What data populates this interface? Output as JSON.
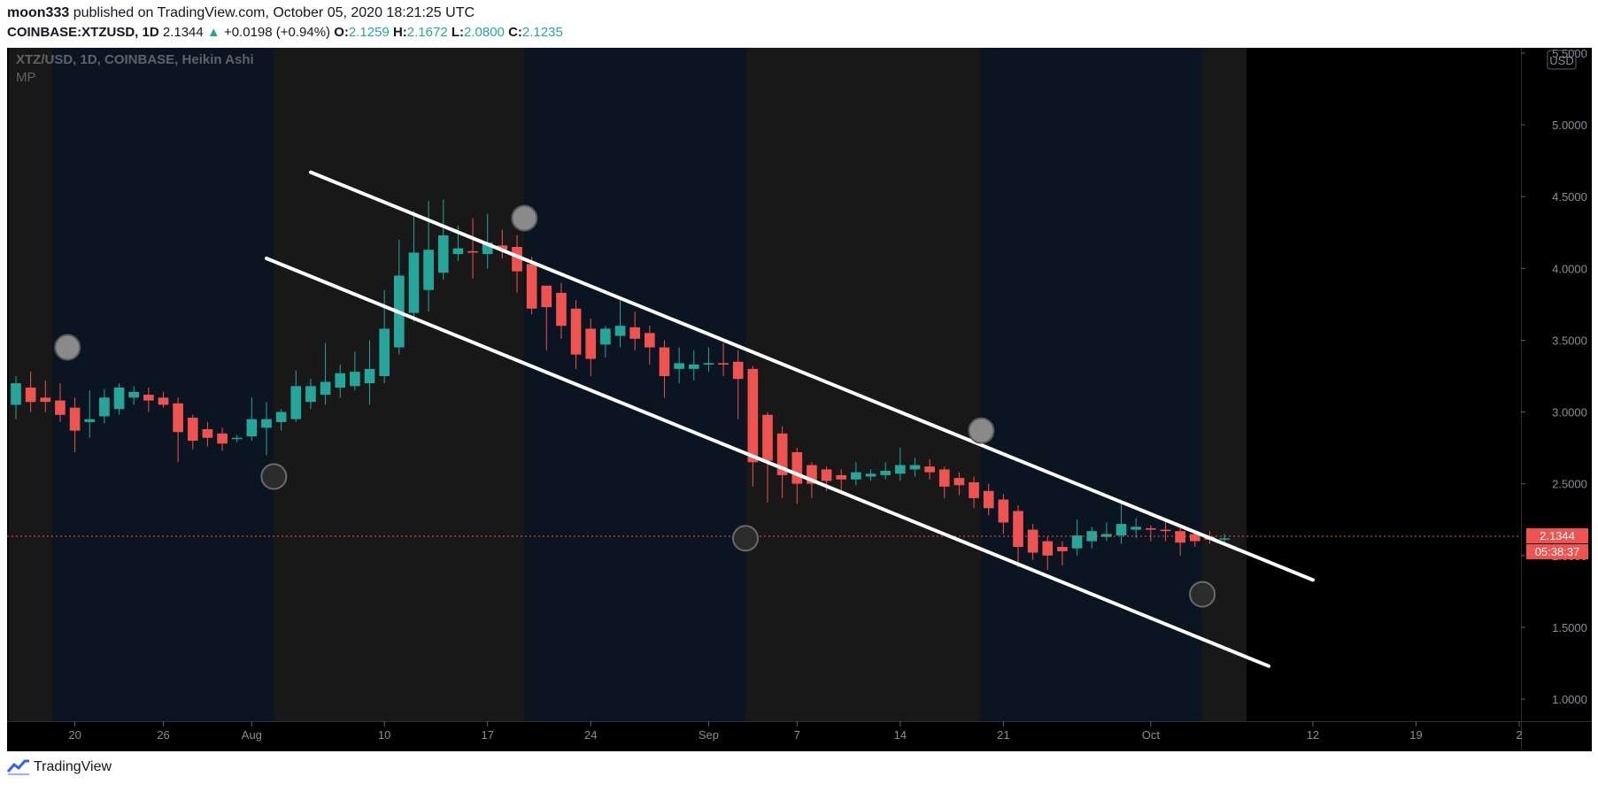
{
  "header": {
    "author": "moon333",
    "published_text": "published on TradingView.com, October 05, 2020 18:21:25 UTC",
    "symbol": "COINBASE:XTZUSD, 1D",
    "last": "2.1344",
    "change_arrow": "▲",
    "change": "+0.0198 (+0.94%)",
    "o_label": "O:",
    "o_value": "2.1259",
    "h_label": "H:",
    "h_value": "2.1672",
    "l_label": "L:",
    "l_value": "2.0800",
    "c_label": "C:",
    "c_value": "2.1235"
  },
  "chart_overlay": {
    "title": "XTZ/USD, 1D, COINBASE, Heikin Ashi",
    "indicator": "MP",
    "currency_badge": "USD",
    "price_label": "2.1344",
    "countdown_label": "05:38:37"
  },
  "footer": {
    "brand": "TradingView",
    "logo_icon": "tradingview-logo-icon"
  },
  "colors": {
    "up": "#26a69a",
    "down": "#ef5350",
    "bg": "#000000",
    "band_gray": "#181818",
    "band_blue": "#0b1521",
    "channel": "#ffffff",
    "marker": "#8a8a8a"
  },
  "chart_data": {
    "type": "candlestick",
    "style": "Heikin Ashi",
    "y_axis": {
      "min": 1.0,
      "max": 5.5,
      "ticks": [
        1.0,
        1.5,
        2.0,
        2.5,
        3.0,
        3.5,
        4.0,
        4.5,
        5.0,
        5.5
      ],
      "tick_labels": [
        "1.0000",
        "1.5000",
        "2.0000",
        "2.5000",
        "3.0000",
        "3.5000",
        "4.0000",
        "4.5000",
        "5.0000",
        "5.5000"
      ]
    },
    "x_axis": {
      "start": "2020-07-16",
      "end": "2020-10-26",
      "ticks": [
        {
          "date": "2020-07-20",
          "label": "20"
        },
        {
          "date": "2020-07-26",
          "label": "26"
        },
        {
          "date": "2020-08-01",
          "label": "Aug"
        },
        {
          "date": "2020-08-10",
          "label": "10"
        },
        {
          "date": "2020-08-17",
          "label": "17"
        },
        {
          "date": "2020-08-24",
          "label": "24"
        },
        {
          "date": "2020-09-01",
          "label": "Sep"
        },
        {
          "date": "2020-09-07",
          "label": "7"
        },
        {
          "date": "2020-09-14",
          "label": "14"
        },
        {
          "date": "2020-09-21",
          "label": "21"
        },
        {
          "date": "2020-10-01",
          "label": "Oct"
        },
        {
          "date": "2020-10-12",
          "label": "12"
        },
        {
          "date": "2020-10-19",
          "label": "19"
        },
        {
          "date": "2020-10-26",
          "label": "2"
        }
      ]
    },
    "bands": [
      {
        "from": "2020-07-16",
        "to": "2020-07-19",
        "kind": "gray"
      },
      {
        "from": "2020-07-19",
        "to": "2020-08-03",
        "kind": "blue"
      },
      {
        "from": "2020-08-03",
        "to": "2020-08-20",
        "kind": "gray"
      },
      {
        "from": "2020-08-20",
        "to": "2020-09-04",
        "kind": "blue"
      },
      {
        "from": "2020-09-04",
        "to": "2020-09-20",
        "kind": "gray"
      },
      {
        "from": "2020-09-20",
        "to": "2020-10-05",
        "kind": "blue"
      },
      {
        "from": "2020-10-05",
        "to": "2020-10-08",
        "kind": "gray"
      }
    ],
    "candles": [
      {
        "date": "2020-07-16",
        "o": 3.05,
        "h": 3.25,
        "l": 2.95,
        "c": 3.2
      },
      {
        "date": "2020-07-17",
        "o": 3.17,
        "h": 3.28,
        "l": 3.0,
        "c": 3.07
      },
      {
        "date": "2020-07-18",
        "o": 3.1,
        "h": 3.22,
        "l": 3.0,
        "c": 3.07
      },
      {
        "date": "2020-07-19",
        "o": 3.08,
        "h": 3.2,
        "l": 2.93,
        "c": 2.98
      },
      {
        "date": "2020-07-20",
        "o": 3.03,
        "h": 3.1,
        "l": 2.72,
        "c": 2.87
      },
      {
        "date": "2020-07-21",
        "o": 2.93,
        "h": 3.15,
        "l": 2.82,
        "c": 2.95
      },
      {
        "date": "2020-07-22",
        "o": 2.97,
        "h": 3.16,
        "l": 2.92,
        "c": 3.1
      },
      {
        "date": "2020-07-23",
        "o": 3.02,
        "h": 3.2,
        "l": 2.98,
        "c": 3.17
      },
      {
        "date": "2020-07-24",
        "o": 3.1,
        "h": 3.18,
        "l": 3.05,
        "c": 3.14
      },
      {
        "date": "2020-07-25",
        "o": 3.12,
        "h": 3.17,
        "l": 3.0,
        "c": 3.08
      },
      {
        "date": "2020-07-26",
        "o": 3.1,
        "h": 3.14,
        "l": 3.03,
        "c": 3.05
      },
      {
        "date": "2020-07-27",
        "o": 3.06,
        "h": 3.1,
        "l": 2.65,
        "c": 2.86
      },
      {
        "date": "2020-07-28",
        "o": 2.96,
        "h": 2.98,
        "l": 2.74,
        "c": 2.8
      },
      {
        "date": "2020-07-29",
        "o": 2.88,
        "h": 2.93,
        "l": 2.76,
        "c": 2.82
      },
      {
        "date": "2020-07-30",
        "o": 2.85,
        "h": 2.89,
        "l": 2.73,
        "c": 2.78
      },
      {
        "date": "2020-07-31",
        "o": 2.82,
        "h": 2.84,
        "l": 2.79,
        "c": 2.82
      },
      {
        "date": "2020-08-01",
        "o": 2.83,
        "h": 3.1,
        "l": 2.8,
        "c": 2.95
      },
      {
        "date": "2020-08-02",
        "o": 2.89,
        "h": 3.07,
        "l": 2.7,
        "c": 2.95
      },
      {
        "date": "2020-08-03",
        "o": 2.93,
        "h": 3.02,
        "l": 2.87,
        "c": 3.0
      },
      {
        "date": "2020-08-04",
        "o": 2.95,
        "h": 3.29,
        "l": 2.93,
        "c": 3.18
      },
      {
        "date": "2020-08-05",
        "o": 3.07,
        "h": 3.23,
        "l": 3.02,
        "c": 3.18
      },
      {
        "date": "2020-08-06",
        "o": 3.12,
        "h": 3.48,
        "l": 3.05,
        "c": 3.21
      },
      {
        "date": "2020-08-07",
        "o": 3.17,
        "h": 3.33,
        "l": 3.1,
        "c": 3.27
      },
      {
        "date": "2020-08-08",
        "o": 3.18,
        "h": 3.42,
        "l": 3.15,
        "c": 3.28
      },
      {
        "date": "2020-08-09",
        "o": 3.2,
        "h": 3.5,
        "l": 3.05,
        "c": 3.3
      },
      {
        "date": "2020-08-10",
        "o": 3.25,
        "h": 3.85,
        "l": 3.2,
        "c": 3.58
      },
      {
        "date": "2020-08-11",
        "o": 3.45,
        "h": 4.2,
        "l": 3.4,
        "c": 3.95
      },
      {
        "date": "2020-08-12",
        "o": 3.69,
        "h": 4.4,
        "l": 3.63,
        "c": 4.11
      },
      {
        "date": "2020-08-13",
        "o": 3.85,
        "h": 4.47,
        "l": 3.7,
        "c": 4.13
      },
      {
        "date": "2020-08-14",
        "o": 3.97,
        "h": 4.48,
        "l": 3.92,
        "c": 4.23
      },
      {
        "date": "2020-08-15",
        "o": 4.1,
        "h": 4.3,
        "l": 4.05,
        "c": 4.14
      },
      {
        "date": "2020-08-16",
        "o": 4.12,
        "h": 4.35,
        "l": 3.93,
        "c": 4.11
      },
      {
        "date": "2020-08-17",
        "o": 4.1,
        "h": 4.38,
        "l": 4.0,
        "c": 4.18
      },
      {
        "date": "2020-08-18",
        "o": 4.16,
        "h": 4.27,
        "l": 4.07,
        "c": 4.13
      },
      {
        "date": "2020-08-19",
        "o": 4.15,
        "h": 4.23,
        "l": 3.83,
        "c": 3.98
      },
      {
        "date": "2020-08-20",
        "o": 4.03,
        "h": 4.08,
        "l": 3.68,
        "c": 3.72
      },
      {
        "date": "2020-08-21",
        "o": 3.88,
        "h": 3.88,
        "l": 3.43,
        "c": 3.73
      },
      {
        "date": "2020-08-22",
        "o": 3.83,
        "h": 3.9,
        "l": 3.51,
        "c": 3.6
      },
      {
        "date": "2020-08-23",
        "o": 3.72,
        "h": 3.78,
        "l": 3.3,
        "c": 3.4
      },
      {
        "date": "2020-08-24",
        "o": 3.58,
        "h": 3.65,
        "l": 3.25,
        "c": 3.37
      },
      {
        "date": "2020-08-25",
        "o": 3.47,
        "h": 3.6,
        "l": 3.38,
        "c": 3.58
      },
      {
        "date": "2020-08-26",
        "o": 3.53,
        "h": 3.8,
        "l": 3.45,
        "c": 3.6
      },
      {
        "date": "2020-08-27",
        "o": 3.59,
        "h": 3.7,
        "l": 3.43,
        "c": 3.51
      },
      {
        "date": "2020-08-28",
        "o": 3.55,
        "h": 3.6,
        "l": 3.33,
        "c": 3.45
      },
      {
        "date": "2020-08-29",
        "o": 3.45,
        "h": 3.5,
        "l": 3.1,
        "c": 3.25
      },
      {
        "date": "2020-08-30",
        "o": 3.3,
        "h": 3.45,
        "l": 3.2,
        "c": 3.34
      },
      {
        "date": "2020-08-31",
        "o": 3.3,
        "h": 3.43,
        "l": 3.22,
        "c": 3.33
      },
      {
        "date": "2020-09-01",
        "o": 3.33,
        "h": 3.45,
        "l": 3.28,
        "c": 3.34
      },
      {
        "date": "2020-09-02",
        "o": 3.34,
        "h": 3.48,
        "l": 3.25,
        "c": 3.33
      },
      {
        "date": "2020-09-03",
        "o": 3.35,
        "h": 3.43,
        "l": 2.95,
        "c": 3.23
      },
      {
        "date": "2020-09-04",
        "o": 3.3,
        "h": 3.32,
        "l": 2.48,
        "c": 2.65
      },
      {
        "date": "2020-09-05",
        "o": 2.98,
        "h": 3.0,
        "l": 2.37,
        "c": 2.66
      },
      {
        "date": "2020-09-06",
        "o": 2.85,
        "h": 2.9,
        "l": 2.4,
        "c": 2.56
      },
      {
        "date": "2020-09-07",
        "o": 2.72,
        "h": 2.75,
        "l": 2.36,
        "c": 2.5
      },
      {
        "date": "2020-09-08",
        "o": 2.63,
        "h": 2.65,
        "l": 2.4,
        "c": 2.5
      },
      {
        "date": "2020-09-09",
        "o": 2.6,
        "h": 2.62,
        "l": 2.45,
        "c": 2.52
      },
      {
        "date": "2020-09-10",
        "o": 2.56,
        "h": 2.6,
        "l": 2.45,
        "c": 2.53
      },
      {
        "date": "2020-09-11",
        "o": 2.53,
        "h": 2.65,
        "l": 2.49,
        "c": 2.58
      },
      {
        "date": "2020-09-12",
        "o": 2.55,
        "h": 2.6,
        "l": 2.52,
        "c": 2.57
      },
      {
        "date": "2020-09-13",
        "o": 2.56,
        "h": 2.65,
        "l": 2.53,
        "c": 2.59
      },
      {
        "date": "2020-09-14",
        "o": 2.57,
        "h": 2.75,
        "l": 2.52,
        "c": 2.63
      },
      {
        "date": "2020-09-15",
        "o": 2.6,
        "h": 2.68,
        "l": 2.55,
        "c": 2.63
      },
      {
        "date": "2020-09-16",
        "o": 2.62,
        "h": 2.67,
        "l": 2.53,
        "c": 2.58
      },
      {
        "date": "2020-09-17",
        "o": 2.6,
        "h": 2.62,
        "l": 2.4,
        "c": 2.48
      },
      {
        "date": "2020-09-18",
        "o": 2.54,
        "h": 2.58,
        "l": 2.42,
        "c": 2.49
      },
      {
        "date": "2020-09-19",
        "o": 2.51,
        "h": 2.55,
        "l": 2.33,
        "c": 2.4
      },
      {
        "date": "2020-09-20",
        "o": 2.45,
        "h": 2.5,
        "l": 2.28,
        "c": 2.33
      },
      {
        "date": "2020-09-21",
        "o": 2.39,
        "h": 2.43,
        "l": 2.15,
        "c": 2.23
      },
      {
        "date": "2020-09-22",
        "o": 2.31,
        "h": 2.35,
        "l": 1.92,
        "c": 2.06
      },
      {
        "date": "2020-09-23",
        "o": 2.18,
        "h": 2.22,
        "l": 1.97,
        "c": 2.02
      },
      {
        "date": "2020-09-24",
        "o": 2.1,
        "h": 2.13,
        "l": 1.9,
        "c": 2.0
      },
      {
        "date": "2020-09-25",
        "o": 2.06,
        "h": 2.1,
        "l": 1.93,
        "c": 2.03
      },
      {
        "date": "2020-09-26",
        "o": 2.05,
        "h": 2.25,
        "l": 2.0,
        "c": 2.14
      },
      {
        "date": "2020-09-27",
        "o": 2.1,
        "h": 2.2,
        "l": 2.05,
        "c": 2.17
      },
      {
        "date": "2020-09-28",
        "o": 2.13,
        "h": 2.23,
        "l": 2.1,
        "c": 2.15
      },
      {
        "date": "2020-09-29",
        "o": 2.14,
        "h": 2.38,
        "l": 2.08,
        "c": 2.22
      },
      {
        "date": "2020-09-30",
        "o": 2.18,
        "h": 2.26,
        "l": 2.12,
        "c": 2.2
      },
      {
        "date": "2020-10-01",
        "o": 2.19,
        "h": 2.21,
        "l": 2.1,
        "c": 2.18
      },
      {
        "date": "2020-10-02",
        "o": 2.18,
        "h": 2.25,
        "l": 2.1,
        "c": 2.17
      },
      {
        "date": "2020-10-03",
        "o": 2.17,
        "h": 2.19,
        "l": 2.0,
        "c": 2.09
      },
      {
        "date": "2020-10-04",
        "o": 2.15,
        "h": 2.17,
        "l": 2.06,
        "c": 2.1
      },
      {
        "date": "2020-10-05",
        "o": 2.13,
        "h": 2.17,
        "l": 2.08,
        "c": 2.11
      },
      {
        "date": "2020-10-06",
        "o": 2.12,
        "h": 2.15,
        "l": 2.08,
        "c": 2.12
      }
    ],
    "channel_lines": [
      {
        "name": "upper",
        "from": {
          "date": "2020-08-05",
          "price": 4.67
        },
        "to": {
          "date": "2020-10-12",
          "price": 1.83
        }
      },
      {
        "name": "lower",
        "from": {
          "date": "2020-08-02",
          "price": 4.07
        },
        "to": {
          "date": "2020-10-09",
          "price": 1.23
        }
      }
    ],
    "markers": [
      {
        "date": "2020-07-20",
        "price": 3.45,
        "shade": "light"
      },
      {
        "date": "2020-08-03",
        "price": 2.55,
        "shade": "dark"
      },
      {
        "date": "2020-08-20",
        "price": 4.35,
        "shade": "light"
      },
      {
        "date": "2020-09-04",
        "price": 2.12,
        "shade": "dark"
      },
      {
        "date": "2020-09-20",
        "price": 2.87,
        "shade": "light"
      },
      {
        "date": "2020-10-05",
        "price": 1.73,
        "shade": "dark"
      }
    ],
    "last_price": 2.1344
  }
}
